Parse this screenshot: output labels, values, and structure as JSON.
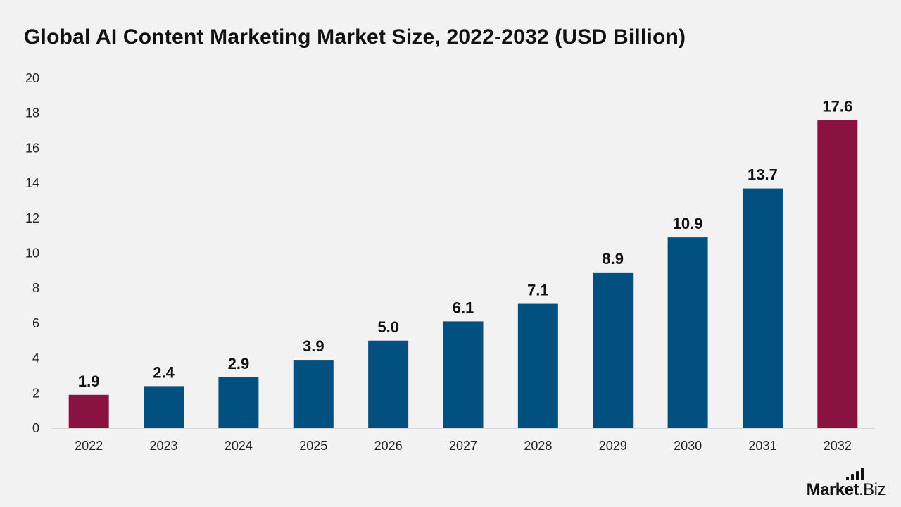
{
  "chart_data": {
    "type": "bar",
    "title": "Global AI Content Marketing Market Size, 2022-2032 (USD Billion)",
    "categories": [
      "2022",
      "2023",
      "2024",
      "2025",
      "2026",
      "2027",
      "2028",
      "2029",
      "2030",
      "2031",
      "2032"
    ],
    "values": [
      1.9,
      2.4,
      2.9,
      3.9,
      5.0,
      6.1,
      7.1,
      8.9,
      10.9,
      13.7,
      17.6
    ],
    "value_labels": [
      "1.9",
      "2.4",
      "2.9",
      "3.9",
      "5.0",
      "6.1",
      "7.1",
      "8.9",
      "10.9",
      "13.7",
      "17.6"
    ],
    "highlighted": [
      true,
      false,
      false,
      false,
      false,
      false,
      false,
      false,
      false,
      false,
      true
    ],
    "ylim": [
      0,
      20
    ],
    "yticks": [
      0,
      2,
      4,
      6,
      8,
      10,
      12,
      14,
      16,
      18,
      20
    ],
    "xlabel": "",
    "ylabel": "",
    "grid": false,
    "colors": {
      "bar": "#02507f",
      "highlight": "#8a1241",
      "axis": "#d9d9d9"
    }
  },
  "brand": {
    "name_bold": "Market",
    "name_rest": ".Biz"
  }
}
